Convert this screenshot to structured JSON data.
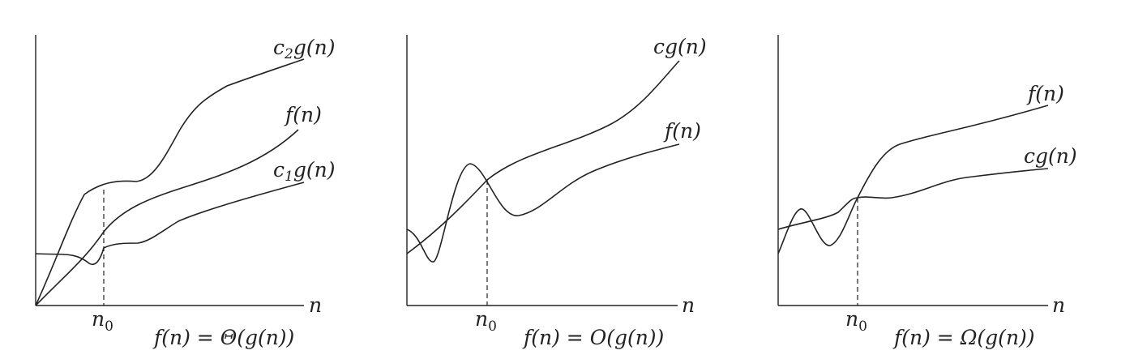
{
  "panels": [
    {
      "axis_x_label": "n",
      "n0_label": "n",
      "n0_subscript": "0",
      "caption": "f(n) = Θ(g(n))",
      "curves": [
        {
          "label": "c",
          "label_sub": "2",
          "label_rest": "g(n)"
        },
        {
          "label": "f(n)",
          "label_sub": "",
          "label_rest": ""
        },
        {
          "label": "c",
          "label_sub": "1",
          "label_rest": "g(n)"
        }
      ]
    },
    {
      "axis_x_label": "n",
      "n0_label": "n",
      "n0_subscript": "0",
      "caption": "f(n) = O(g(n))",
      "curves": [
        {
          "label": "cg(n)",
          "label_sub": "",
          "label_rest": ""
        },
        {
          "label": "f(n)",
          "label_sub": "",
          "label_rest": ""
        }
      ]
    },
    {
      "axis_x_label": "n",
      "n0_label": "n",
      "n0_subscript": "0",
      "caption": "f(n) = Ω(g(n))",
      "curves": [
        {
          "label": "f(n)",
          "label_sub": "",
          "label_rest": ""
        },
        {
          "label": "cg(n)",
          "label_sub": "",
          "label_rest": ""
        }
      ]
    }
  ]
}
